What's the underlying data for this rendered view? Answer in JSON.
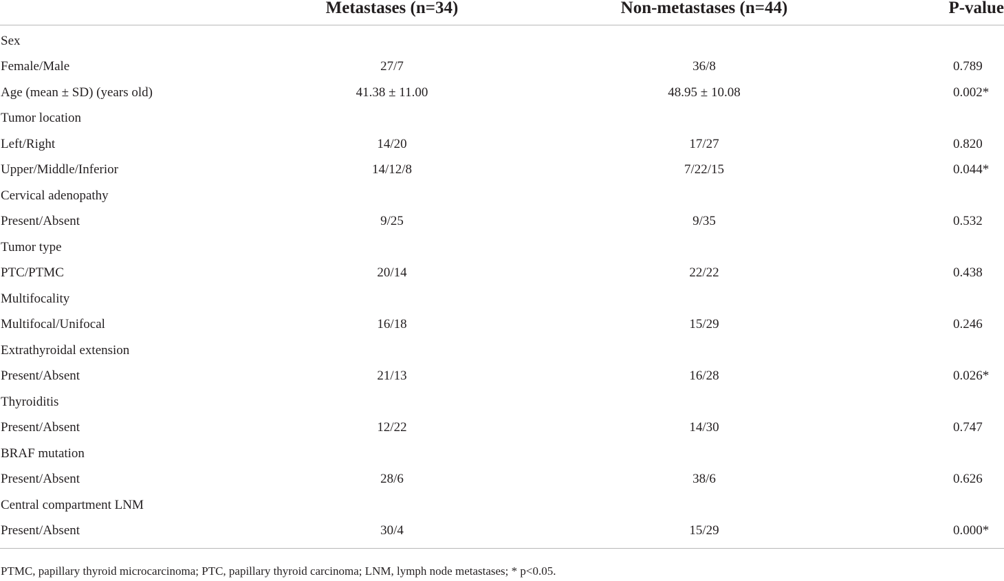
{
  "table": {
    "headers": [
      "",
      "Metastases (n=34)",
      "Non-metastases (n=44)",
      "P-value"
    ],
    "rows": [
      {
        "label": "Sex",
        "metastases": "",
        "non_metastases": "",
        "p_value": ""
      },
      {
        "label": "Female/Male",
        "metastases": "27/7",
        "non_metastases": "36/8",
        "p_value": "0.789"
      },
      {
        "label": "Age (mean ± SD) (years old)",
        "metastases": "41.38 ± 11.00",
        "non_metastases": "48.95 ± 10.08",
        "p_value": "0.002*"
      },
      {
        "label": "Tumor location",
        "metastases": "",
        "non_metastases": "",
        "p_value": ""
      },
      {
        "label": "Left/Right",
        "metastases": "14/20",
        "non_metastases": "17/27",
        "p_value": "0.820"
      },
      {
        "label": "Upper/Middle/Inferior",
        "metastases": "14/12/8",
        "non_metastases": "7/22/15",
        "p_value": "0.044*"
      },
      {
        "label": "Cervical adenopathy",
        "metastases": "",
        "non_metastases": "",
        "p_value": ""
      },
      {
        "label": "Present/Absent",
        "metastases": "9/25",
        "non_metastases": "9/35",
        "p_value": "0.532"
      },
      {
        "label": "Tumor type",
        "metastases": "",
        "non_metastases": "",
        "p_value": ""
      },
      {
        "label": "PTC/PTMC",
        "metastases": "20/14",
        "non_metastases": "22/22",
        "p_value": "0.438"
      },
      {
        "label": "Multifocality",
        "metastases": "",
        "non_metastases": "",
        "p_value": ""
      },
      {
        "label": "Multifocal/Unifocal",
        "metastases": "16/18",
        "non_metastases": "15/29",
        "p_value": "0.246"
      },
      {
        "label": "Extrathyroidal extension",
        "metastases": "",
        "non_metastases": "",
        "p_value": ""
      },
      {
        "label": "Present/Absent",
        "metastases": "21/13",
        "non_metastases": "16/28",
        "p_value": "0.026*"
      },
      {
        "label": "Thyroiditis",
        "metastases": "",
        "non_metastases": "",
        "p_value": ""
      },
      {
        "label": "Present/Absent",
        "metastases": "12/22",
        "non_metastases": "14/30",
        "p_value": "0.747"
      },
      {
        "label": "BRAF mutation",
        "metastases": "",
        "non_metastases": "",
        "p_value": ""
      },
      {
        "label": "Present/Absent",
        "metastases": "28/6",
        "non_metastases": "38/6",
        "p_value": "0.626"
      },
      {
        "label": "Central compartment LNM",
        "metastases": "",
        "non_metastases": "",
        "p_value": ""
      },
      {
        "label": "Present/Absent",
        "metastases": "30/4",
        "non_metastases": "15/29",
        "p_value": "0.000*"
      }
    ]
  },
  "footnote": "PTMC, papillary thyroid microcarcinoma; PTC, papillary thyroid carcinoma; LNM, lymph node metastases; * p<0.05."
}
